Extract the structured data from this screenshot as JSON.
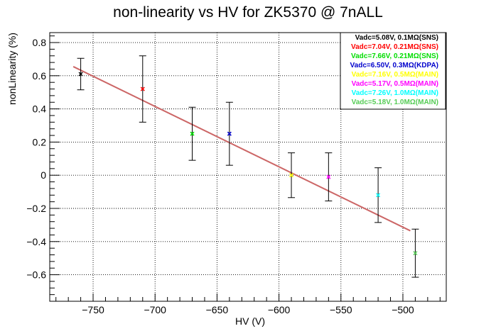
{
  "chart_data": {
    "type": "scatter",
    "title": "non-linearity vs HV for ZK5370 @ 7nALL",
    "xlabel": "HV (V)",
    "ylabel": "nonLinearity (%)",
    "xlim": [
      -785,
      -465
    ],
    "ylim": [
      -0.76,
      0.86
    ],
    "grid": true,
    "legend_position": "top-right",
    "x_ticks": [
      -750,
      -700,
      -650,
      -600,
      -550,
      -500
    ],
    "y_ticks": [
      -0.6,
      -0.4,
      -0.2,
      0,
      0.2,
      0.4,
      0.6,
      0.8
    ],
    "x_tick_labels": [
      "−750",
      "−700",
      "−650",
      "−600",
      "−550",
      "−500"
    ],
    "y_tick_labels": [
      "−0.6",
      "−0.4",
      "−0.2",
      "0",
      "0.2",
      "0.4",
      "0.6",
      "0.8"
    ],
    "series": [
      {
        "name": "Vadc=5.08V, 0.1MΩ(SNS)",
        "color": "#000000",
        "x": -760,
        "y": 0.61,
        "err": 0.095
      },
      {
        "name": "Vadc=7.04V, 0.21MΩ(SNS)",
        "color": "#ff0000",
        "x": -710,
        "y": 0.52,
        "err": 0.2
      },
      {
        "name": "Vadc=7.66V, 0.21MΩ(SNS)",
        "color": "#00dd00",
        "x": -670,
        "y": 0.25,
        "err": 0.16
      },
      {
        "name": "Vadc=6.50V, 0.3MΩ(KDPA)",
        "color": "#0000cc",
        "x": -640,
        "y": 0.25,
        "err": 0.19
      },
      {
        "name": "Vadc=7.16V, 0.5MΩ(MAIN)",
        "color": "#ffff00",
        "x": -590,
        "y": 0.0,
        "err": 0.135
      },
      {
        "name": "Vadc=5.17V, 0.5MΩ(MAIN)",
        "color": "#ff00ff",
        "x": -560,
        "y": -0.01,
        "err": 0.145
      },
      {
        "name": "Vadc=7.26V, 1.0MΩ(MAIN)",
        "color": "#00ffff",
        "x": -520,
        "y": -0.12,
        "err": 0.165
      },
      {
        "name": "Vadc=5.18V, 1.0MΩ(MAIN)",
        "color": "#55cc55",
        "x": -490,
        "y": -0.47,
        "err": 0.145
      }
    ],
    "fit": {
      "color": "#cc6666",
      "x": [
        -766,
        -494
      ],
      "y": [
        0.655,
        -0.335
      ]
    }
  }
}
